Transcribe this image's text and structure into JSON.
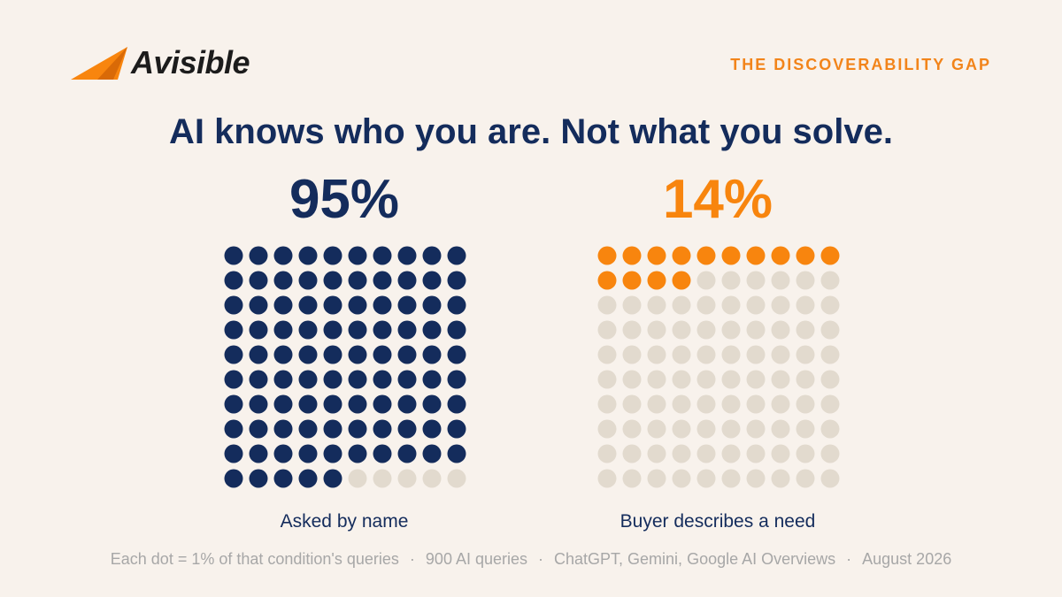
{
  "brand": {
    "name": "Avisible"
  },
  "tagline": "THE DISCOVERABILITY GAP",
  "headline": "AI knows who you are. Not what you solve.",
  "colors": {
    "navy": "#142c5c",
    "orange": "#f8850e",
    "empty_dot": "#e2dace",
    "background": "#f8f2ec"
  },
  "chart_data": [
    {
      "type": "waffle",
      "total_dots": 100,
      "value": 95,
      "value_label": "95%",
      "label": "Asked by name",
      "fill_color": "#142c5c"
    },
    {
      "type": "waffle",
      "total_dots": 100,
      "value": 14,
      "value_label": "14%",
      "label": "Buyer describes a need",
      "fill_color": "#f8850e"
    }
  ],
  "footer": {
    "items": [
      "Each dot = 1% of that condition's queries",
      "900 AI queries",
      "ChatGPT, Gemini, Google AI Overviews",
      "August 2026"
    ],
    "separator": "·"
  }
}
